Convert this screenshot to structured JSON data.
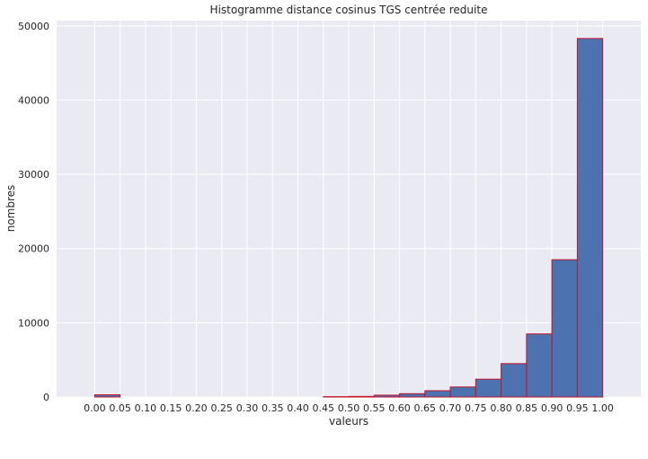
{
  "chart_data": {
    "type": "bar",
    "title": "Histogramme distance cosinus TGS centrée reduite",
    "xlabel": "valeurs",
    "ylabel": "nombres",
    "bin_width": 0.05,
    "bins": [
      {
        "start": 0.0,
        "value": 300
      },
      {
        "start": 0.05,
        "value": 0
      },
      {
        "start": 0.1,
        "value": 0
      },
      {
        "start": 0.15,
        "value": 0
      },
      {
        "start": 0.2,
        "value": 0
      },
      {
        "start": 0.25,
        "value": 0
      },
      {
        "start": 0.3,
        "value": 0
      },
      {
        "start": 0.35,
        "value": 0
      },
      {
        "start": 0.4,
        "value": 0
      },
      {
        "start": 0.45,
        "value": 50
      },
      {
        "start": 0.5,
        "value": 80
      },
      {
        "start": 0.55,
        "value": 250
      },
      {
        "start": 0.6,
        "value": 450
      },
      {
        "start": 0.65,
        "value": 850
      },
      {
        "start": 0.7,
        "value": 1350
      },
      {
        "start": 0.75,
        "value": 2400
      },
      {
        "start": 0.8,
        "value": 4500
      },
      {
        "start": 0.85,
        "value": 8500
      },
      {
        "start": 0.9,
        "value": 18500
      },
      {
        "start": 0.95,
        "value": 48300
      }
    ],
    "xticks": [
      "0.00",
      "0.05",
      "0.10",
      "0.15",
      "0.20",
      "0.25",
      "0.30",
      "0.35",
      "0.40",
      "0.45",
      "0.50",
      "0.55",
      "0.60",
      "0.65",
      "0.70",
      "0.75",
      "0.80",
      "0.85",
      "0.90",
      "0.95",
      "1.00"
    ],
    "xlim": [
      -0.075,
      1.075
    ],
    "yticks": [
      0,
      10000,
      20000,
      30000,
      40000,
      50000
    ],
    "ylim": [
      0,
      50700
    ],
    "grid": true,
    "colors": {
      "background": "#eaeaf2",
      "grid": "#ffffff",
      "bar_fill": "#4c72b0",
      "bar_edge": "#c0142c",
      "text": "#262626"
    }
  }
}
